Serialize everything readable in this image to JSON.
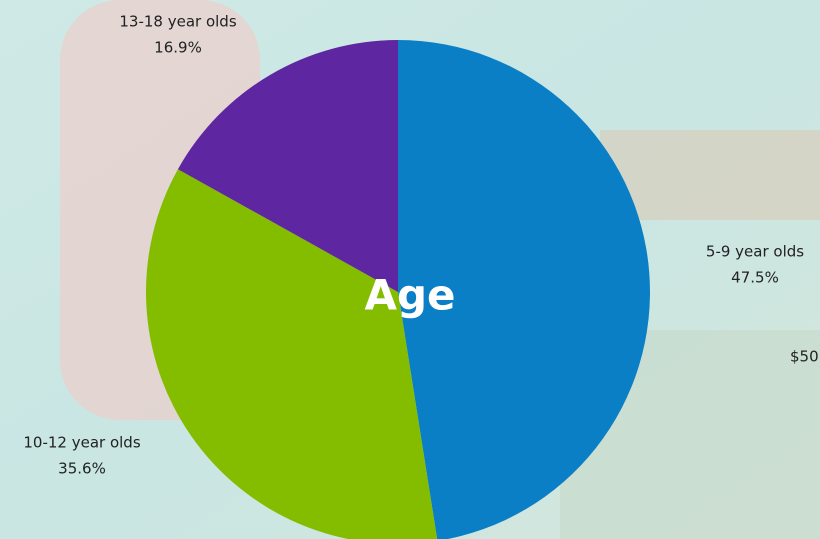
{
  "chart_data": {
    "type": "pie",
    "title": "Age",
    "categories": [
      "5-9 year olds",
      "10-12 year olds",
      "13-18 year olds"
    ],
    "values": [
      47.5,
      35.6,
      16.9
    ],
    "value_labels": [
      "47.5%",
      "35.6%",
      "16.9%"
    ],
    "colors": [
      "#0a7fc5",
      "#84bc00",
      "#5e26a0"
    ],
    "annotation": "$50"
  }
}
